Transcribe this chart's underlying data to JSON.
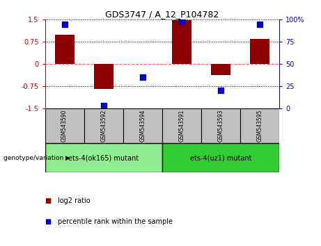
{
  "title": "GDS3747 / A_12_P104782",
  "samples": [
    "GSM543590",
    "GSM543592",
    "GSM543594",
    "GSM543591",
    "GSM543593",
    "GSM543595"
  ],
  "log2_ratio": [
    1.0,
    -0.85,
    0.0,
    1.48,
    -0.38,
    0.85
  ],
  "percentile_rank": [
    95,
    3,
    35,
    98,
    20,
    95
  ],
  "ylim_left": [
    -1.5,
    1.5
  ],
  "ylim_right": [
    0,
    100
  ],
  "yticks_left": [
    -1.5,
    -0.75,
    0,
    0.75,
    1.5
  ],
  "yticks_right": [
    0,
    25,
    50,
    75,
    100
  ],
  "ytick_labels_right": [
    "0",
    "25",
    "50",
    "75",
    "100%"
  ],
  "bar_color": "#8B0000",
  "dot_color": "#0000CC",
  "zero_line_color": "#FF6666",
  "grid_color": "black",
  "group1_label": "ets-4(ok165) mutant",
  "group2_label": "ets-4(uz1) mutant",
  "group1_color": "#90EE90",
  "group2_color": "#32CD32",
  "group_bg_color": "#C0C0C0",
  "genotype_label": "genotype/variation",
  "legend_log2": "log2 ratio",
  "legend_percentile": "percentile rank within the sample",
  "left_axis_color": "#CC0000",
  "right_axis_color": "#0000CC",
  "bar_width": 0.5,
  "dot_size": 30
}
